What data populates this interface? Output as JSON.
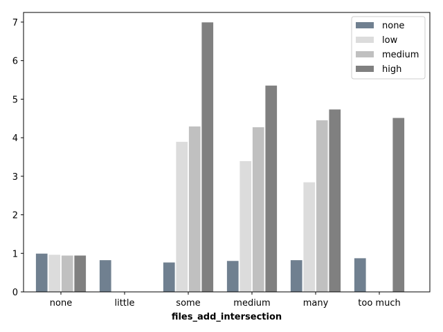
{
  "chart_data": {
    "type": "bar",
    "title": "",
    "xlabel": "files_add_intersection",
    "ylabel": "",
    "categories": [
      "none",
      "little",
      "some",
      "medium",
      "many",
      "too much"
    ],
    "ylim": [
      0,
      7.25
    ],
    "yticks": [
      0,
      1,
      2,
      3,
      4,
      5,
      6,
      7
    ],
    "grid": false,
    "legend_position": "top-right",
    "series": [
      {
        "name": "none",
        "color": "#708090",
        "values": [
          1.0,
          0.83,
          0.77,
          0.81,
          0.83,
          0.88
        ]
      },
      {
        "name": "low",
        "color": "#dcdcdc",
        "values": [
          0.97,
          null,
          3.9,
          3.4,
          2.85,
          null
        ]
      },
      {
        "name": "medium",
        "color": "#c0c0c0",
        "values": [
          0.95,
          null,
          4.3,
          4.28,
          4.46,
          null
        ]
      },
      {
        "name": "high",
        "color": "#808080",
        "values": [
          0.95,
          null,
          7.0,
          5.36,
          4.74,
          4.52
        ]
      }
    ]
  }
}
